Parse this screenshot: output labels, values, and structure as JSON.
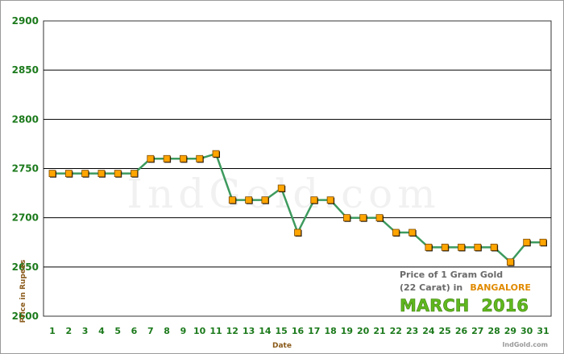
{
  "chart_data": {
    "type": "line",
    "xlabel": "Date",
    "ylabel": "Price in Rupees",
    "ylim": [
      2600,
      2900
    ],
    "yticks": [
      2600,
      2650,
      2700,
      2750,
      2800,
      2850,
      2900
    ],
    "grid": true,
    "categories": [
      "1",
      "2",
      "3",
      "4",
      "5",
      "6",
      "7",
      "8",
      "9",
      "10",
      "11",
      "12",
      "13",
      "14",
      "15",
      "16",
      "17",
      "18",
      "19",
      "20",
      "21",
      "22",
      "23",
      "24",
      "25",
      "26",
      "27",
      "28",
      "29",
      "30",
      "31"
    ],
    "values": [
      2745,
      2745,
      2745,
      2745,
      2745,
      2745,
      2760,
      2760,
      2760,
      2760,
      2765,
      2718,
      2718,
      2718,
      2730,
      2685,
      2718,
      2718,
      2700,
      2700,
      2700,
      2685,
      2685,
      2670,
      2670,
      2670,
      2670,
      2670,
      2655,
      2675,
      2675
    ],
    "line_color": "#3d9a5e",
    "marker_color": "#ffa500",
    "caption": {
      "line1": "Price of 1 Gram Gold",
      "line2_prefix": "(22 Carat) in",
      "city": "BANGALORE",
      "month": "MARCH",
      "year": "2016",
      "site": "IndGold.com"
    },
    "watermark": "IndGold.com"
  }
}
